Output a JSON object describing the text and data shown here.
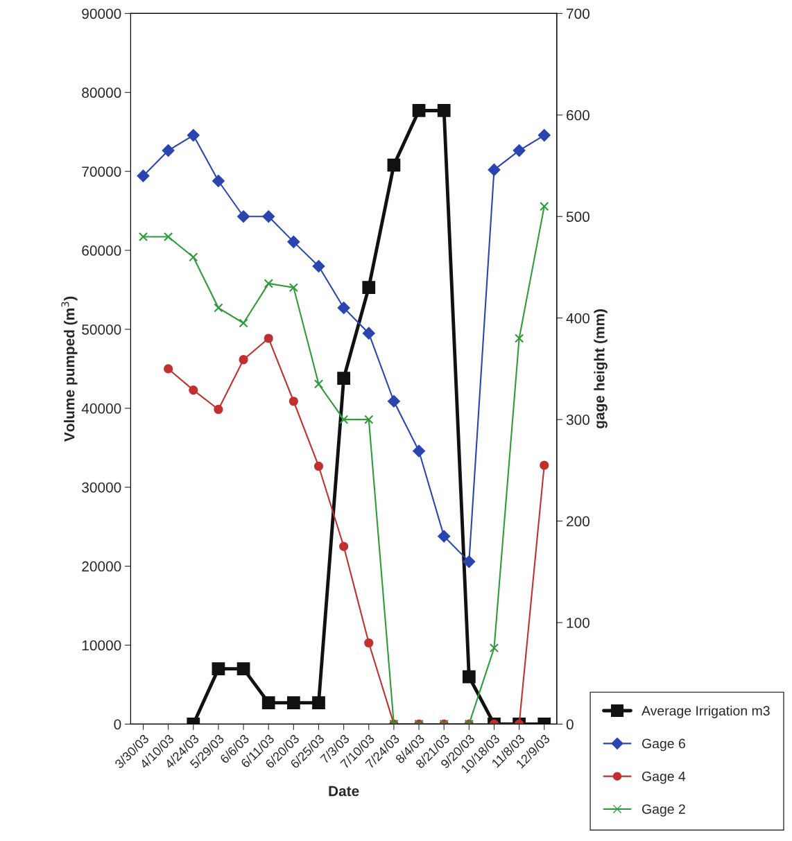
{
  "chart_data": {
    "type": "line",
    "xlabel": "Date",
    "ylabel": "Volume pumped (m$^{3}$)",
    "y2label": "gage height (mm)",
    "categories": [
      "3/30/03",
      "4/10/03",
      "4/24/03",
      "5/29/03",
      "6/6/03",
      "6/11/03",
      "6/20/03",
      "6/25/03",
      "7/3/03",
      "7/10/03",
      "7/24/03",
      "8/4/03",
      "8/21/03",
      "9/20/03",
      "10/18/03",
      "11/8/03",
      "12/9/03"
    ],
    "ylim": [
      0,
      90000
    ],
    "yticks": [
      0,
      10000,
      20000,
      30000,
      40000,
      50000,
      60000,
      70000,
      80000,
      90000
    ],
    "y2lim": [
      0,
      700
    ],
    "y2ticks": [
      0,
      100,
      200,
      300,
      400,
      500,
      600,
      700
    ],
    "grid": false,
    "legend": "bottom right",
    "series": [
      {
        "name": "Average Irrigation m3",
        "color": "#111111",
        "marker": "square",
        "values": [
          null,
          null,
          0,
          7000,
          7000,
          2700,
          2700,
          2700,
          43800,
          55300,
          70800,
          77700,
          77700,
          6000,
          0,
          0,
          0
        ]
      },
      {
        "name": "Gage 6",
        "color": "#2a45b0",
        "marker": "diamond",
        "axis": "y2",
        "values": [
          540,
          565,
          580,
          535,
          500,
          500,
          475,
          451,
          410,
          385,
          318,
          269,
          185,
          160,
          546,
          565,
          580
        ]
      },
      {
        "name": "Gage 4",
        "color": "#c0302e",
        "marker": "circle",
        "axis": "y2",
        "values": [
          null,
          350,
          329,
          310,
          359,
          380,
          318,
          254,
          175,
          80,
          0,
          0,
          0,
          0,
          0,
          0,
          255
        ]
      },
      {
        "name": "Gage 2",
        "color": "#2e9a3a",
        "marker": "cross",
        "axis": "y2",
        "values": [
          480,
          480,
          460,
          410,
          395,
          434,
          430,
          335,
          300,
          300,
          0,
          0,
          0,
          0,
          75,
          380,
          510
        ]
      }
    ]
  }
}
